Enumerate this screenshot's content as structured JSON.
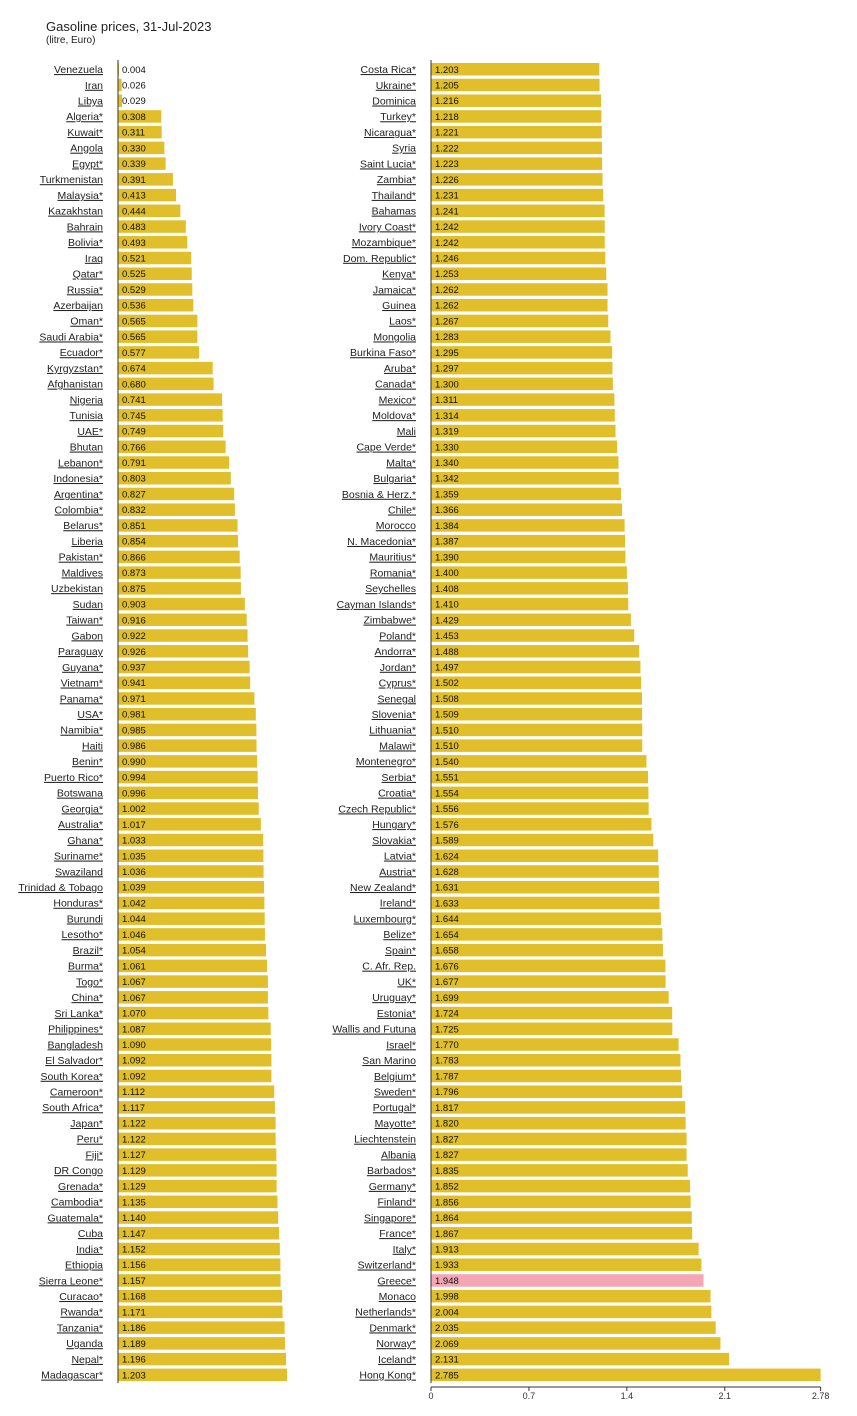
{
  "header": {
    "title": "Gasoline prices, 31-Jul-2023",
    "subtitle": "(litre, Euro)"
  },
  "colors": {
    "bar": "#e0bf2b",
    "highlight": "#f4a6b4",
    "axis": "#333333"
  },
  "chart_data": {
    "type": "bar",
    "orientation": "horizontal",
    "title": "Gasoline prices, 31-Jul-2023",
    "subtitle": "(litre, Euro)",
    "xlim": [
      0,
      2.785
    ],
    "xticks": [
      "0",
      "0.7",
      "1.4",
      "2.1",
      "2.78"
    ],
    "highlight": "Greece*",
    "categories": [
      "Venezuela",
      "Iran",
      "Libya",
      "Algeria*",
      "Kuwait*",
      "Angola",
      "Egypt*",
      "Turkmenistan",
      "Malaysia*",
      "Kazakhstan",
      "Bahrain",
      "Bolivia*",
      "Iraq",
      "Qatar*",
      "Russia*",
      "Azerbaijan",
      "Oman*",
      "Saudi Arabia*",
      "Ecuador*",
      "Kyrgyzstan*",
      "Afghanistan",
      "Nigeria",
      "Tunisia",
      "UAE*",
      "Bhutan",
      "Lebanon*",
      "Indonesia*",
      "Argentina*",
      "Colombia*",
      "Belarus*",
      "Liberia",
      "Pakistan*",
      "Maldives",
      "Uzbekistan",
      "Sudan",
      "Taiwan*",
      "Gabon",
      "Paraguay",
      "Guyana*",
      "Vietnam*",
      "Panama*",
      "USA*",
      "Namibia*",
      "Haiti",
      "Benin*",
      "Puerto Rico*",
      "Botswana",
      "Georgia*",
      "Australia*",
      "Ghana*",
      "Suriname*",
      "Swaziland",
      "Trinidad & Tobago",
      "Honduras*",
      "Burundi",
      "Lesotho*",
      "Brazil*",
      "Burma*",
      "Togo*",
      "China*",
      "Sri Lanka*",
      "Philippines*",
      "Bangladesh",
      "El Salvador*",
      "South Korea*",
      "Cameroon*",
      "South Africa*",
      "Japan*",
      "Peru*",
      "Fiji*",
      "DR Congo",
      "Grenada*",
      "Cambodia*",
      "Guatemala*",
      "Cuba",
      "India*",
      "Ethiopia",
      "Sierra Leone*",
      "Curacao*",
      "Rwanda*",
      "Tanzania*",
      "Uganda",
      "Nepal*",
      "Madagascar*",
      "Costa Rica*",
      "Ukraine*",
      "Dominica",
      "Turkey*",
      "Nicaragua*",
      "Syria",
      "Saint Lucia*",
      "Zambia*",
      "Thailand*",
      "Bahamas",
      "Ivory Coast*",
      "Mozambique*",
      "Dom. Republic*",
      "Kenya*",
      "Jamaica*",
      "Guinea",
      "Laos*",
      "Mongolia",
      "Burkina Faso*",
      "Aruba*",
      "Canada*",
      "Mexico*",
      "Moldova*",
      "Mali",
      "Cape Verde*",
      "Malta*",
      "Bulgaria*",
      "Bosnia & Herz.*",
      "Chile*",
      "Morocco",
      "N. Macedonia*",
      "Mauritius*",
      "Romania*",
      "Seychelles",
      "Cayman Islands*",
      "Zimbabwe*",
      "Poland*",
      "Andorra*",
      "Jordan*",
      "Cyprus*",
      "Senegal",
      "Slovenia*",
      "Lithuania*",
      "Malawi*",
      "Montenegro*",
      "Serbia*",
      "Croatia*",
      "Czech Republic*",
      "Hungary*",
      "Slovakia*",
      "Latvia*",
      "Austria*",
      "New Zealand*",
      "Ireland*",
      "Luxembourg*",
      "Belize*",
      "Spain*",
      "C. Afr. Rep.",
      "UK*",
      "Uruguay*",
      "Estonia*",
      "Wallis and Futuna",
      "Israel*",
      "San Marino",
      "Belgium*",
      "Sweden*",
      "Portugal*",
      "Mayotte*",
      "Liechtenstein",
      "Albania",
      "Barbados*",
      "Germany*",
      "Finland*",
      "Singapore*",
      "France*",
      "Italy*",
      "Switzerland*",
      "Greece*",
      "Monaco",
      "Netherlands*",
      "Denmark*",
      "Norway*",
      "Iceland*",
      "Hong Kong*"
    ],
    "values": [
      0.004,
      0.026,
      0.029,
      0.308,
      0.311,
      0.33,
      0.339,
      0.391,
      0.413,
      0.444,
      0.483,
      0.493,
      0.521,
      0.525,
      0.529,
      0.536,
      0.565,
      0.565,
      0.577,
      0.674,
      0.68,
      0.741,
      0.745,
      0.749,
      0.766,
      0.791,
      0.803,
      0.827,
      0.832,
      0.851,
      0.854,
      0.866,
      0.873,
      0.875,
      0.903,
      0.916,
      0.922,
      0.926,
      0.937,
      0.941,
      0.971,
      0.981,
      0.985,
      0.986,
      0.99,
      0.994,
      0.996,
      1.002,
      1.017,
      1.033,
      1.035,
      1.036,
      1.039,
      1.042,
      1.044,
      1.046,
      1.054,
      1.061,
      1.067,
      1.067,
      1.07,
      1.087,
      1.09,
      1.092,
      1.092,
      1.112,
      1.117,
      1.122,
      1.122,
      1.127,
      1.129,
      1.129,
      1.135,
      1.14,
      1.147,
      1.152,
      1.156,
      1.157,
      1.168,
      1.171,
      1.186,
      1.189,
      1.196,
      1.203,
      1.203,
      1.205,
      1.216,
      1.218,
      1.221,
      1.222,
      1.223,
      1.226,
      1.231,
      1.241,
      1.242,
      1.242,
      1.246,
      1.253,
      1.262,
      1.262,
      1.267,
      1.283,
      1.295,
      1.297,
      1.3,
      1.311,
      1.314,
      1.319,
      1.33,
      1.34,
      1.342,
      1.359,
      1.366,
      1.384,
      1.387,
      1.39,
      1.4,
      1.408,
      1.41,
      1.429,
      1.453,
      1.488,
      1.497,
      1.502,
      1.508,
      1.509,
      1.51,
      1.51,
      1.54,
      1.551,
      1.554,
      1.556,
      1.576,
      1.589,
      1.624,
      1.628,
      1.631,
      1.633,
      1.644,
      1.654,
      1.658,
      1.676,
      1.677,
      1.699,
      1.724,
      1.725,
      1.77,
      1.783,
      1.787,
      1.796,
      1.817,
      1.82,
      1.827,
      1.827,
      1.835,
      1.852,
      1.856,
      1.864,
      1.867,
      1.913,
      1.933,
      1.948,
      1.998,
      2.004,
      2.035,
      2.069,
      2.131,
      2.785
    ],
    "value_labels": [
      "0.004",
      "0.026",
      "0.029",
      "0.308",
      "0.311",
      "0.330",
      "0.339",
      "0.391",
      "0.413",
      "0.444",
      "0.483",
      "0.493",
      "0.521",
      "0.525",
      "0.529",
      "0.536",
      "0.565",
      "0.565",
      "0.577",
      "0.674",
      "0.680",
      "0.741",
      "0.745",
      "0.749",
      "0.766",
      "0.791",
      "0.803",
      "0.827",
      "0.832",
      "0.851",
      "0.854",
      "0.866",
      "0.873",
      "0.875",
      "0.903",
      "0.916",
      "0.922",
      "0.926",
      "0.937",
      "0.941",
      "0.971",
      "0.981",
      "0.985",
      "0.986",
      "0.990",
      "0.994",
      "0.996",
      "1.002",
      "1.017",
      "1.033",
      "1.035",
      "1.036",
      "1.039",
      "1.042",
      "1.044",
      "1.046",
      "1.054",
      "1.061",
      "1.067",
      "1.067",
      "1.070",
      "1.087",
      "1.090",
      "1.092",
      "1.092",
      "1.112",
      "1.117",
      "1.122",
      "1.122",
      "1.127",
      "1.129",
      "1.129",
      "1.135",
      "1.140",
      "1.147",
      "1.152",
      "1.156",
      "1.157",
      "1.168",
      "1.171",
      "1.186",
      "1.189",
      "1.196",
      "1.203",
      "1.203",
      "1.205",
      "1.216",
      "1.218",
      "1.221",
      "1.222",
      "1.223",
      "1.226",
      "1.231",
      "1.241",
      "1.242",
      "1.242",
      "1.246",
      "1.253",
      "1.262",
      "1.262",
      "1.267",
      "1.283",
      "1.295",
      "1.297",
      "1.300",
      "1.311",
      "1.314",
      "1.319",
      "1.330",
      "1.340",
      "1.342",
      "1.359",
      "1.366",
      "1.384",
      "1.387",
      "1.390",
      "1.400",
      "1.408",
      "1.410",
      "1.429",
      "1.453",
      "1.488",
      "1.497",
      "1.502",
      "1.508",
      "1.509",
      "1.510",
      "1.510",
      "1.540",
      "1.551",
      "1.554",
      "1.556",
      "1.576",
      "1.589",
      "1.624",
      "1.628",
      "1.631",
      "1.633",
      "1.644",
      "1.654",
      "1.658",
      "1.676",
      "1.677",
      "1.699",
      "1.724",
      "1.725",
      "1.770",
      "1.783",
      "1.787",
      "1.796",
      "1.817",
      "1.820",
      "1.827",
      "1.827",
      "1.835",
      "1.852",
      "1.856",
      "1.864",
      "1.867",
      "1.913",
      "1.933",
      "1.948",
      "1.998",
      "2.004",
      "2.035",
      "2.069",
      "2.131",
      "2.785"
    ]
  }
}
